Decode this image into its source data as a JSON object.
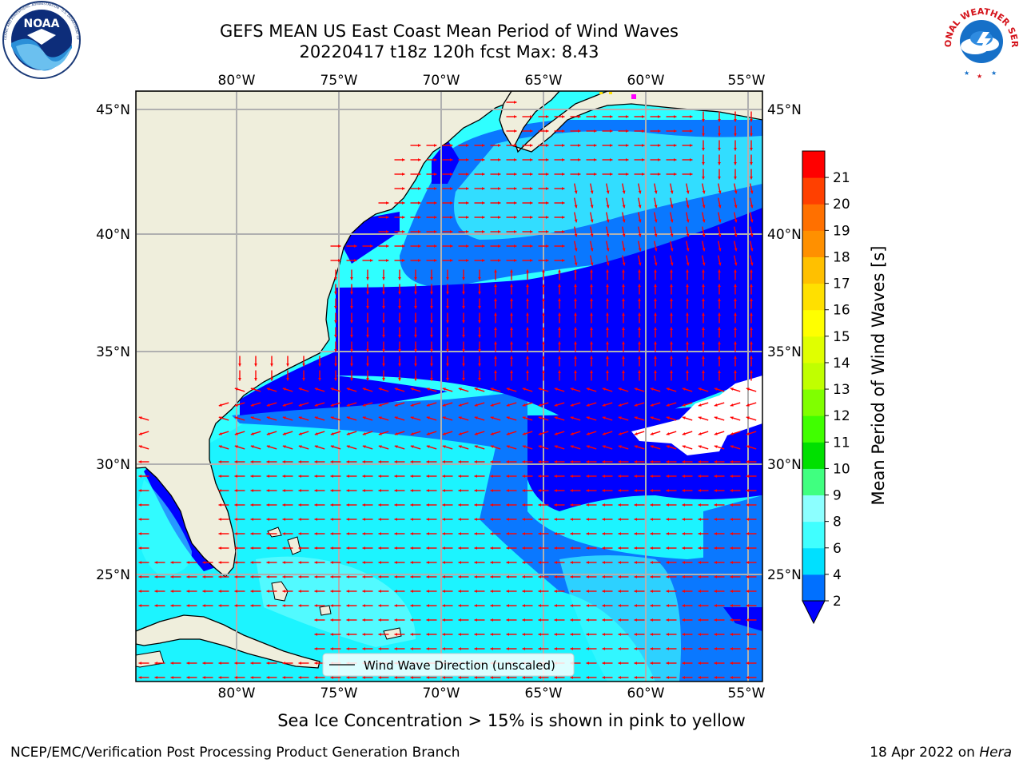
{
  "title": {
    "line1": "GEFS MEAN US East Coast Mean Period of Wind Waves",
    "line2": "20220417 t18z 120h fcst   Max: 8.43"
  },
  "map": {
    "lon_range": [
      -85,
      -54.5
    ],
    "lat_range": [
      20.5,
      45.8
    ],
    "lon_ticks": [
      "80°W",
      "75°W",
      "70°W",
      "65°W",
      "60°W",
      "55°W"
    ],
    "lat_ticks_left": [
      "45°N",
      "40°N",
      "35°N",
      "30°N",
      "25°N"
    ],
    "lat_ticks_right": [
      "45°N",
      "40°N",
      "35°N",
      "30°N",
      "25°N"
    ],
    "grid": true,
    "land_color": "#efeedc",
    "vector_color": "#ff0000",
    "legend_label": "Wind Wave Direction (unscaled)"
  },
  "colorbar": {
    "label": "Mean Period of Wind Waves [s]",
    "ticks": [
      "2",
      "4",
      "6",
      "8",
      "9",
      "10",
      "11",
      "12",
      "13",
      "14",
      "15",
      "16",
      "17",
      "18",
      "19",
      "20",
      "21"
    ],
    "colors": [
      "#0070ff",
      "#00e0ff",
      "#40ffff",
      "#8cffff",
      "#40ff80",
      "#00e000",
      "#40ff00",
      "#80ff00",
      "#c0ff00",
      "#e0ff00",
      "#ffff00",
      "#ffe000",
      "#ffc000",
      "#ff9000",
      "#ff7000",
      "#ff4000",
      "#ff0000"
    ],
    "under_color": "#0000ff"
  },
  "logos": {
    "left_icon": "noaa-logo",
    "left_text": "NOAA",
    "left_ring_text": "NATIONAL OCEANIC AND ATMOSPHERIC ADMINISTRATION · U.S. DEPARTMENT OF COMMERCE",
    "right_icon": "nws-logo",
    "right_ring_text": "NATIONAL WEATHER SERVICE"
  },
  "ice_note": "Sea Ice Concentration > 15% is shown in pink to yellow",
  "footer": {
    "left": "NCEP/EMC/Verification Post Processing Product Generation Branch",
    "right_date": "18 Apr 2022 on ",
    "right_machine": "Hera"
  }
}
